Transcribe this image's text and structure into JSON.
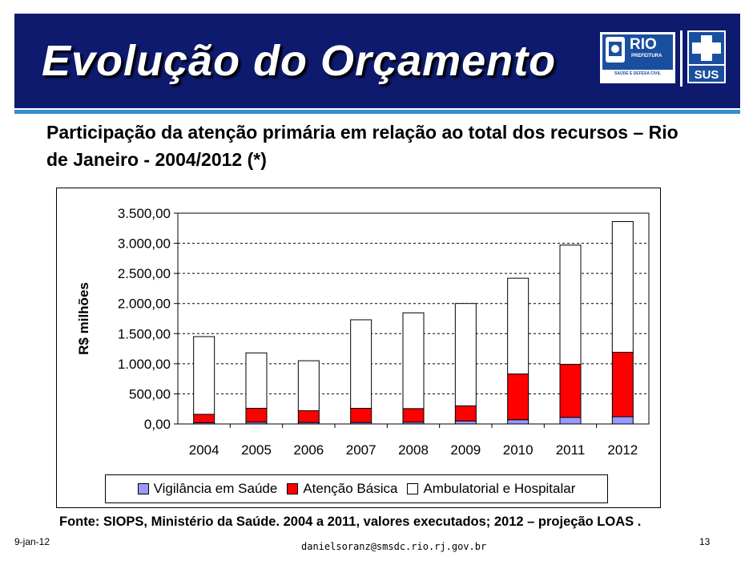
{
  "slide": {
    "title": "Evolução do Orçamento",
    "subtitle": "Participação da atenção primária em relação ao total dos recursos – Rio de Janeiro - 2004/2012 (*)",
    "source": "Fonte: SIOPS, Ministério da Saúde.  2004 a 2011, valores executados; 2012 – projeção LOAS .",
    "footer_date": "9-jan-12",
    "footer_email": "danielsoranz@smsdc.rio.rj.gov.br",
    "page_number": "13"
  },
  "logos": {
    "rio_word": "RIO",
    "prefeitura": "PREFEITURA",
    "dept": "SAÚDE E DEFESA CIVIL",
    "sus": "SUS"
  },
  "colors": {
    "banner": "#0d1a6e",
    "vigilancia": "#9999ff",
    "atencao": "#ff0000",
    "ambulatorial": "#ffffff"
  },
  "chart_data": {
    "type": "bar",
    "stacked": true,
    "ylabel": "R$ milhões",
    "ylim": [
      0,
      3500
    ],
    "yticks": [
      "0,00",
      "500,00",
      "1.000,00",
      "1.500,00",
      "2.000,00",
      "2.500,00",
      "3.000,00",
      "3.500,00"
    ],
    "grid": true,
    "legend_position": "bottom",
    "categories": [
      "2004",
      "2005",
      "2006",
      "2007",
      "2008",
      "2009",
      "2010",
      "2011",
      "2012"
    ],
    "series": [
      {
        "name": "Vigilância em Saúde",
        "color": "#9999ff",
        "values": [
          20,
          30,
          25,
          25,
          30,
          50,
          70,
          110,
          120
        ]
      },
      {
        "name": "Atenção Básica",
        "color": "#ff0000",
        "values": [
          140,
          230,
          195,
          235,
          225,
          250,
          760,
          880,
          1070
        ]
      },
      {
        "name": "Ambulatorial e Hospitalar",
        "color": "#ffffff",
        "values": [
          1290,
          920,
          830,
          1470,
          1590,
          1700,
          1590,
          1980,
          2170
        ]
      }
    ]
  }
}
